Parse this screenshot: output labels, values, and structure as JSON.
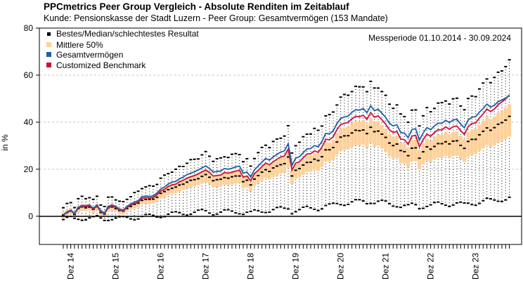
{
  "chart_data": {
    "type": "line",
    "title": "PPCmetrics Peer Group Vergleich - Absolute Renditen im Zeitablauf",
    "subtitle": "Kunde: Pensionskasse der Stadt Luzern - Peer Group: Gesamtvermögen (153 Mandate)",
    "ylabel": "in %",
    "ylim": [
      -12,
      80
    ],
    "yticks": [
      0,
      20,
      40,
      60,
      80
    ],
    "period_label": "Messperiode 01.10.2014 - 30.09.2024",
    "x_tick_labels": [
      "Dez 14",
      "Dez 15",
      "Dez 16",
      "Dez 17",
      "Dez 18",
      "Dez 19",
      "Dez 20",
      "Dez 21",
      "Dez 22",
      "Dez 23"
    ],
    "legend": {
      "placement": "top-left",
      "items": [
        "Bestes/Median/schlechtestes Resultat",
        "Mittlere 50%",
        "Gesamtvermögen",
        "Customized Benchmark"
      ]
    },
    "grid": true,
    "colors": {
      "band": "#fdd19a",
      "gesamt": "#1f5fa8",
      "benchmark": "#d0103a",
      "marker": "#000000"
    },
    "x": [
      "2014-10",
      "2014-11",
      "2014-12",
      "2015-01",
      "2015-02",
      "2015-03",
      "2015-04",
      "2015-05",
      "2015-06",
      "2015-07",
      "2015-08",
      "2015-09",
      "2015-10",
      "2015-11",
      "2015-12",
      "2016-01",
      "2016-02",
      "2016-03",
      "2016-04",
      "2016-05",
      "2016-06",
      "2016-07",
      "2016-08",
      "2016-09",
      "2016-10",
      "2016-11",
      "2016-12",
      "2017-01",
      "2017-02",
      "2017-03",
      "2017-04",
      "2017-05",
      "2017-06",
      "2017-07",
      "2017-08",
      "2017-09",
      "2017-10",
      "2017-11",
      "2017-12",
      "2018-01",
      "2018-02",
      "2018-03",
      "2018-04",
      "2018-05",
      "2018-06",
      "2018-07",
      "2018-08",
      "2018-09",
      "2018-10",
      "2018-11",
      "2018-12",
      "2019-01",
      "2019-02",
      "2019-03",
      "2019-04",
      "2019-05",
      "2019-06",
      "2019-07",
      "2019-08",
      "2019-09",
      "2019-10",
      "2019-11",
      "2019-12",
      "2020-01",
      "2020-02",
      "2020-03",
      "2020-04",
      "2020-05",
      "2020-06",
      "2020-07",
      "2020-08",
      "2020-09",
      "2020-10",
      "2020-11",
      "2020-12",
      "2021-01",
      "2021-02",
      "2021-03",
      "2021-04",
      "2021-05",
      "2021-06",
      "2021-07",
      "2021-08",
      "2021-09",
      "2021-10",
      "2021-11",
      "2021-12",
      "2022-01",
      "2022-02",
      "2022-03",
      "2022-04",
      "2022-05",
      "2022-06",
      "2022-07",
      "2022-08",
      "2022-09",
      "2022-10",
      "2022-11",
      "2022-12",
      "2023-01",
      "2023-02",
      "2023-03",
      "2023-04",
      "2023-05",
      "2023-06",
      "2023-07",
      "2023-08",
      "2023-09",
      "2023-10",
      "2023-11",
      "2023-12",
      "2024-01",
      "2024-02",
      "2024-03",
      "2024-04",
      "2024-05",
      "2024-06",
      "2024-07",
      "2024-08",
      "2024-09"
    ],
    "series": [
      {
        "name": "Gesamtvermögen",
        "values": [
          0.6,
          1.8,
          2.6,
          1.2,
          3.8,
          4.6,
          4.5,
          4.8,
          3.4,
          4.8,
          2.3,
          1.4,
          4.2,
          4.8,
          4.2,
          3.0,
          2.6,
          4.2,
          5.2,
          6.0,
          6.6,
          8.3,
          8.6,
          8.4,
          8.7,
          9.9,
          11.6,
          12.4,
          13.7,
          14.5,
          14.8,
          15.9,
          16.7,
          17.7,
          18.3,
          18.9,
          19.7,
          20.6,
          21.4,
          20.3,
          18.8,
          19.0,
          19.2,
          20.3,
          20.0,
          20.4,
          21.0,
          21.3,
          18.3,
          18.8,
          16.7,
          19.8,
          21.3,
          23.0,
          24.6,
          23.8,
          25.2,
          26.3,
          27.3,
          27.8,
          30.9,
          21.6,
          24.7,
          25.3,
          27.0,
          28.6,
          28.8,
          30.1,
          29.5,
          31.8,
          35.2,
          35.0,
          36.3,
          39.4,
          41.6,
          42.2,
          42.6,
          44.2,
          45.3,
          45.1,
          45.8,
          44.0,
          47.0,
          44.9,
          45.5,
          43.8,
          42.0,
          39.5,
          38.4,
          38.9,
          35.6,
          35.4,
          33.4,
          36.9,
          37.2,
          32.3,
          35.4,
          37.7,
          36.8,
          38.4,
          39.6,
          39.5,
          40.8,
          39.8,
          40.9,
          41.2,
          39.2,
          37.6,
          40.9,
          42.1,
          42.3,
          44.3,
          45.8,
          47.7,
          46.4,
          47.2,
          48.7,
          49.4,
          50.3,
          51.2
        ]
      },
      {
        "name": "Customized Benchmark",
        "values": [
          0.5,
          1.5,
          2.4,
          1.0,
          3.4,
          4.1,
          4.0,
          4.3,
          3.0,
          4.3,
          1.9,
          1.0,
          3.7,
          4.3,
          3.7,
          2.6,
          2.2,
          3.7,
          4.7,
          5.4,
          6.0,
          7.6,
          7.9,
          7.7,
          8.0,
          9.1,
          10.7,
          11.4,
          12.6,
          13.3,
          13.6,
          14.6,
          15.3,
          16.2,
          16.8,
          17.3,
          18.0,
          18.9,
          19.6,
          18.6,
          17.1,
          17.3,
          17.5,
          18.6,
          18.3,
          18.7,
          19.2,
          19.5,
          16.6,
          17.1,
          15.1,
          18.1,
          19.5,
          21.1,
          22.6,
          21.8,
          23.2,
          24.2,
          25.2,
          25.6,
          28.6,
          19.6,
          22.6,
          23.2,
          24.8,
          26.4,
          26.6,
          27.8,
          27.2,
          29.4,
          32.7,
          32.5,
          33.8,
          36.8,
          39.0,
          39.5,
          39.9,
          41.4,
          42.5,
          42.3,
          43.0,
          41.2,
          44.1,
          42.1,
          42.7,
          41.0,
          39.2,
          36.7,
          35.6,
          36.1,
          32.8,
          32.6,
          30.6,
          34.1,
          34.4,
          29.5,
          32.6,
          34.9,
          34.0,
          35.6,
          36.8,
          36.7,
          38.0,
          37.0,
          38.1,
          38.4,
          36.4,
          34.8,
          38.1,
          39.4,
          39.7,
          41.8,
          43.5,
          45.6,
          44.5,
          45.6,
          47.4,
          48.6,
          49.9,
          51.6
        ]
      }
    ]
  }
}
